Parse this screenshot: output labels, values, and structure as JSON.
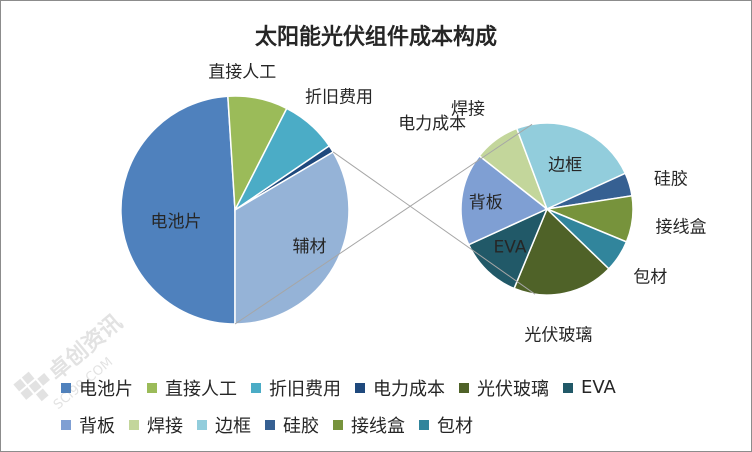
{
  "chart_data": {
    "type": "pie",
    "title": "太阳能光伏组件成本构成",
    "main_pie": {
      "slices": [
        {
          "label": "电池片",
          "value": 49,
          "color": "#4f81bd"
        },
        {
          "label": "直接人工",
          "value": 8.5,
          "color": "#9bbb59"
        },
        {
          "label": "折旧费用",
          "value": 8,
          "color": "#4bacc6"
        },
        {
          "label": "电力成本",
          "value": 1,
          "color": "#1f497d"
        },
        {
          "label": "辅材",
          "value": 33.5,
          "color": "#95b3d7"
        }
      ]
    },
    "secondary_pie": {
      "parent_label": "辅材",
      "slices": [
        {
          "label": "光伏玻璃",
          "value": 17.5,
          "color": "#4f6228"
        },
        {
          "label": "EVA",
          "value": 11,
          "color": "#215968"
        },
        {
          "label": "背板",
          "value": 16,
          "color": "#7f9fd3"
        },
        {
          "label": "焊接",
          "value": 8,
          "color": "#c3d69b"
        },
        {
          "label": "边框",
          "value": 22,
          "color": "#92cddc"
        },
        {
          "label": "硅胶",
          "value": 4,
          "color": "#366092"
        },
        {
          "label": "接线盒",
          "value": 8,
          "color": "#77933c"
        },
        {
          "label": "包材",
          "value": 5.5,
          "color": "#31859c"
        }
      ]
    },
    "legend": {
      "placement": "bottom",
      "rows": [
        [
          "电池片",
          "直接人工",
          "折旧费用",
          "电力成本",
          "光伏玻璃",
          "EVA"
        ],
        [
          "背板",
          "焊接",
          "边框",
          "硅胶",
          "接线盒",
          "包材"
        ]
      ]
    }
  },
  "watermark": {
    "icon": "grid-logo-icon",
    "text_cn": "卓创资讯",
    "text_en": "SCI99.COM"
  }
}
